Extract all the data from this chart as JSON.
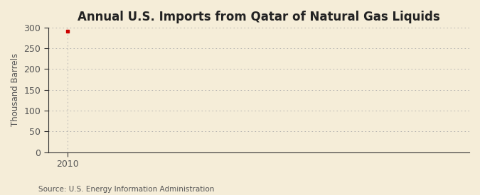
{
  "title": "Annual U.S. Imports from Qatar of Natural Gas Liquids",
  "ylabel": "Thousand Barrels",
  "source_text": "Source: U.S. Energy Information Administration",
  "background_color": "#f5edd8",
  "plot_bg_color": "#f5edd8",
  "data_x": [
    2010
  ],
  "data_y": [
    291
  ],
  "data_color": "#cc0000",
  "xlim": [
    2009.4,
    2022.5
  ],
  "ylim": [
    0,
    300
  ],
  "yticks": [
    0,
    50,
    100,
    150,
    200,
    250,
    300
  ],
  "xticks": [
    2010
  ],
  "grid_color": "#aaaaaa",
  "tick_color": "#555555",
  "spine_color": "#333333",
  "title_fontsize": 12,
  "label_fontsize": 8.5,
  "tick_fontsize": 9,
  "source_fontsize": 7.5
}
